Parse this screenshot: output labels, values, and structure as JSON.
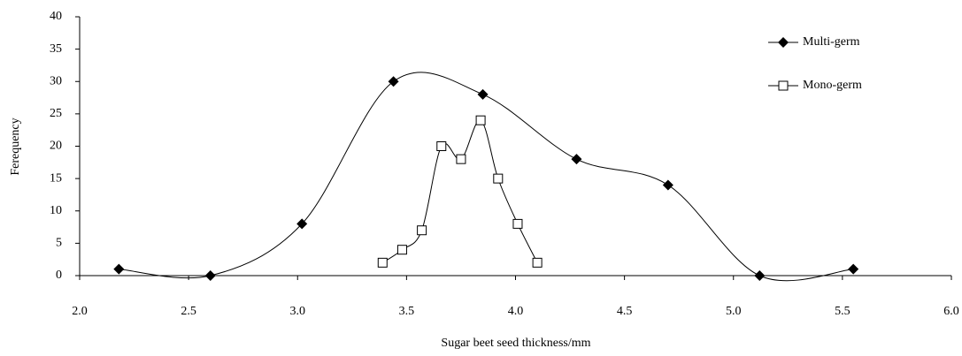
{
  "chart_data": {
    "type": "scatter",
    "x_label": "Sugar beet seed thickness/mm",
    "y_label": "Ferequency",
    "smooth": true,
    "series": [
      {
        "name": "Multi-germ",
        "color": "#000000",
        "marker": "diamond",
        "x": [
          2.18,
          2.6,
          3.02,
          3.44,
          3.85,
          4.28,
          4.7,
          5.12,
          5.55
        ],
        "values": [
          1,
          0,
          8,
          30,
          28,
          18,
          14,
          0,
          1
        ]
      },
      {
        "name": "Mono-germ",
        "color": "#000000",
        "marker": "square",
        "x": [
          3.39,
          3.48,
          3.57,
          3.66,
          3.75,
          3.84,
          3.92,
          4.01,
          4.1
        ],
        "values": [
          2,
          4,
          7,
          20,
          18,
          24,
          15,
          8,
          2
        ]
      }
    ],
    "xlim": [
      2,
      6
    ],
    "xticks": [
      {
        "value": 2,
        "label": "2.0"
      },
      {
        "value": 2.5,
        "label": "2.5"
      },
      {
        "value": 3,
        "label": "3.0"
      },
      {
        "value": 3.5,
        "label": "3.5"
      },
      {
        "value": 4,
        "label": "4.0"
      },
      {
        "value": 4.5,
        "label": "4.5"
      },
      {
        "value": 5,
        "label": "5.0"
      },
      {
        "value": 5.5,
        "label": "5.5"
      },
      {
        "value": 6,
        "label": "6.0"
      }
    ],
    "ylim": [
      0,
      40
    ],
    "yticks": [
      0,
      5,
      10,
      15,
      20,
      25,
      30,
      35,
      40
    ],
    "legend": "top-right"
  }
}
